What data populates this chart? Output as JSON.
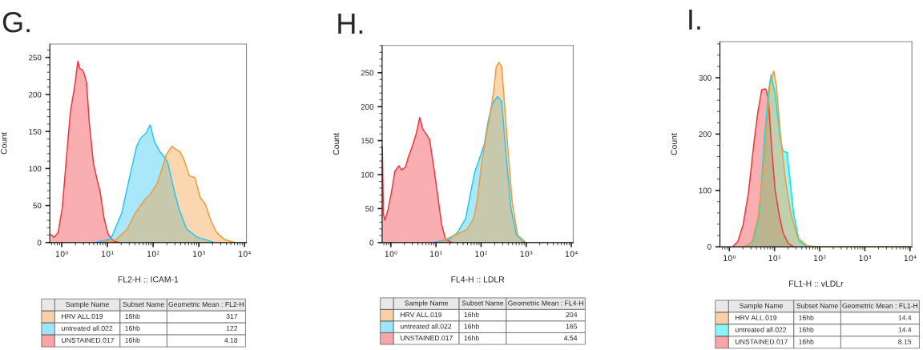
{
  "chart_data": [
    {
      "type": "area",
      "title": "G.",
      "xlabel": "FL2-H :: ICAM-1",
      "ylabel": "Count",
      "log": "x",
      "legend": "bottom",
      "xlim": [
        0.55,
        11000
      ],
      "xticks": [
        {
          "value": 1,
          "label": "10⁰"
        },
        {
          "value": 10,
          "label": "10¹"
        },
        {
          "value": 100,
          "label": "10²"
        },
        {
          "value": 1000,
          "label": "10³"
        },
        {
          "value": 10000,
          "label": "10⁴"
        }
      ],
      "ylim": [
        0,
        268
      ],
      "yticks": [
        0,
        50,
        100,
        150,
        200,
        250
      ],
      "annotations": [
        "Sample Name",
        "Subset Name",
        "Geometric Mean : FL2-H",
        "16hb",
        "317",
        "16hb",
        "122",
        "16hb",
        "4.18"
      ],
      "series": [
        {
          "name": "HRV ALL.019",
          "color": "#f59a3a",
          "x": [
            6.92,
            15.7,
            27.0,
            40.7,
            65.6,
            86.1,
            121,
            159,
            195,
            256,
            314,
            385,
            473,
            621,
            815,
            1071,
            1406,
            1846,
            2424,
            3648,
            6290
          ],
          "values": [
            0,
            4,
            18,
            40,
            58,
            65,
            79,
            101,
            119,
            130,
            126,
            123,
            112,
            90,
            88,
            61,
            51,
            29,
            14,
            4,
            0
          ]
        },
        {
          "name": "untreated all.022",
          "color": "#29c5f6",
          "x": [
            5.27,
            11.9,
            20.6,
            31.0,
            43.6,
            53.4,
            70.2,
            86.1,
            106,
            139,
            170,
            209,
            274,
            360,
            542,
            934,
            1406,
            2116
          ],
          "values": [
            0,
            5,
            40,
            90,
            130,
            141,
            148,
            159,
            137,
            123,
            117,
            108,
            76,
            47,
            18,
            7,
            4,
            0
          ]
        },
        {
          "name": "UNSTAINED.017",
          "color": "#f0383c",
          "x": [
            0.58,
            0.68,
            0.84,
            1.03,
            1.26,
            1.55,
            1.9,
            2.26,
            2.49,
            2.86,
            3.14,
            3.5,
            4.01,
            4.92,
            6.04,
            6.92,
            8.49,
            10.4,
            13.7,
            18.0
          ],
          "values": [
            11,
            7,
            14,
            47,
            112,
            177,
            209,
            245,
            235,
            233,
            227,
            216,
            162,
            108,
            83,
            69,
            32,
            11,
            2,
            0
          ]
        }
      ]
    },
    {
      "type": "area",
      "title": "H.",
      "xlabel": "FL4-H :: LDLR",
      "ylabel": "Count",
      "log": "x",
      "legend": "bottom",
      "xlim": [
        0.64,
        11000
      ],
      "xticks": [
        {
          "value": 1,
          "label": "10⁰"
        },
        {
          "value": 10,
          "label": "10¹"
        },
        {
          "value": 100,
          "label": "10²"
        },
        {
          "value": 1000,
          "label": "10³"
        },
        {
          "value": 10000,
          "label": "10⁴"
        }
      ],
      "ylim": [
        0,
        290
      ],
      "yticks": [
        0,
        50,
        100,
        150,
        200,
        250
      ],
      "annotations": [
        "Sample Name",
        "Subset Name",
        "Geometric Mean : FL4-H",
        "16hb",
        "204",
        "16hb",
        "165",
        "16hb",
        "4.54"
      ],
      "series": [
        {
          "name": "HRV ALL.019",
          "color": "#f59a3a",
          "x": [
            11.6,
            26.3,
            48.6,
            68.3,
            83.8,
            103,
            126,
            155,
            190,
            217,
            249,
            286,
            327,
            402,
            493,
            647,
            973
          ],
          "values": [
            0,
            11,
            19,
            35,
            66,
            117,
            152,
            184,
            223,
            259,
            265,
            259,
            208,
            129,
            58,
            11,
            0
          ]
        },
        {
          "name": "untreated all.022",
          "color": "#29c5f6",
          "x": [
            8.85,
            20.0,
            30.1,
            45.4,
            55.7,
            73.1,
            89.7,
            118,
            145,
            177,
            233,
            286,
            350,
            460,
            604,
            909
          ],
          "values": [
            0,
            5,
            15,
            35,
            66,
            105,
            121,
            145,
            180,
            204,
            215,
            208,
            137,
            50,
            11,
            0
          ]
        },
        {
          "name": "UNSTAINED.017",
          "color": "#f0383c",
          "x": [
            0.647,
            0.683,
            0.741,
            0.873,
            1.03,
            1.23,
            1.51,
            1.73,
            2.11,
            2.42,
            2.97,
            3.65,
            4.36,
            5.13,
            6.04,
            7.21,
            8.85,
            10.9,
            13.3,
            16.3,
            23.0
          ],
          "values": [
            141,
            42,
            33,
            50,
            74,
            105,
            113,
            107,
            111,
            125,
            141,
            160,
            184,
            167,
            160,
            152,
            113,
            70,
            27,
            5,
            0
          ]
        }
      ]
    },
    {
      "type": "area",
      "title": "I.",
      "xlabel": "FL1-H :: vLDLr",
      "ylabel": "Count",
      "log": "x",
      "legend": "bottom",
      "xlim": [
        0.62,
        11000
      ],
      "xticks": [
        {
          "value": 1,
          "label": "10⁰"
        },
        {
          "value": 10,
          "label": "10¹"
        },
        {
          "value": 100,
          "label": "10²"
        },
        {
          "value": 1000,
          "label": "10³"
        },
        {
          "value": 10000,
          "label": "10⁴"
        }
      ],
      "ylim": [
        0,
        364
      ],
      "yticks": [
        0,
        100,
        200,
        300
      ],
      "annotations": [
        "Sample Name",
        "Subset Name",
        "Geometric Mean : FL1-H",
        "16hb",
        "14.4",
        "16hb",
        "14.4",
        "16hb",
        "8.15"
      ],
      "series": [
        {
          "name": "HRV ALL.019",
          "color": "#f59a3a",
          "x": [
            2.02,
            3.04,
            4.26,
            5.98,
            7.84,
            9.6,
            11.0,
            13.5,
            17.7,
            23.2,
            32.5,
            52.2,
            89.7,
            10000
          ],
          "values": [
            0,
            6,
            49,
            153,
            286,
            312,
            286,
            200,
            115,
            58,
            16,
            2,
            0,
            0
          ]
        },
        {
          "name": "untreated all.022",
          "color": "#00e5ee",
          "x": [
            2.32,
            3.48,
            4.56,
            5.98,
            7.33,
            8.39,
            10.3,
            13.5,
            15.4,
            18.9,
            21.6,
            26.5,
            34.8,
            52.2
          ],
          "values": [
            0,
            11,
            54,
            191,
            276,
            305,
            272,
            191,
            170,
            167,
            125,
            58,
            11,
            0
          ]
        },
        {
          "name": "UNSTAINED.017",
          "color": "#f0383c",
          "x": [
            1.18,
            1.54,
            2.02,
            2.65,
            3.48,
            4.26,
            5.22,
            6.4,
            7.33,
            8.39,
            10.3,
            12.6,
            15.4,
            20.2,
            26.5
          ],
          "values": [
            0,
            9,
            39,
            96,
            182,
            238,
            279,
            280,
            262,
            191,
            101,
            58,
            25,
            6,
            0
          ]
        }
      ]
    }
  ]
}
